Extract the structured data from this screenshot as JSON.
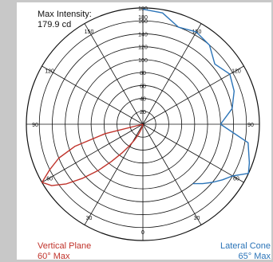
{
  "header": {
    "label": "Max Intensity:",
    "value": "179.9 cd"
  },
  "legend": {
    "left": {
      "line1": "Vertical Plane",
      "line2": "60° Max",
      "color": "#c0332b"
    },
    "right": {
      "line1": "Lateral Cone",
      "line2": "65° Max",
      "color": "#2b74b8"
    }
  },
  "chart_data": {
    "type": "polar-line",
    "radial_range": [
      0,
      180
    ],
    "radial_ticks": [
      20,
      40,
      60,
      80,
      100,
      120,
      140,
      160,
      180
    ],
    "angle_labels": [
      {
        "text": "180",
        "at": 180
      },
      {
        "text": "150",
        "at": 150
      },
      {
        "text": "120",
        "at": 120
      },
      {
        "text": "90",
        "at": 90
      },
      {
        "text": "60",
        "at": 60
      },
      {
        "text": "30",
        "at": 30
      },
      {
        "text": "0",
        "at": 0
      },
      {
        "text": "30",
        "at": -30
      },
      {
        "text": "60",
        "at": -60
      },
      {
        "text": "90",
        "at": -90
      },
      {
        "text": "120",
        "at": -120
      },
      {
        "text": "150",
        "at": -150
      }
    ],
    "grid": true,
    "series": [
      {
        "name": "Vertical Plane",
        "color": "#c0332b",
        "angles": [
          -80,
          -76,
          -72,
          -68,
          -64,
          -60,
          -56,
          -52,
          -48,
          -44,
          -40,
          -36,
          -32,
          -28,
          -24,
          -20,
          -16,
          -12,
          -8,
          -4,
          0
        ],
        "values": [
          0,
          60,
          110,
          140,
          160,
          179.9,
          170,
          150,
          125,
          100,
          75,
          55,
          40,
          28,
          18,
          10,
          5,
          2,
          1,
          0.5,
          0
        ]
      },
      {
        "name": "Lateral Cone",
        "color": "#2b74b8",
        "angles": [
          180,
          170,
          160,
          150,
          140,
          130,
          120,
          110,
          100,
          90,
          80,
          70,
          65,
          60,
          55,
          50,
          45,
          40
        ],
        "values": [
          178,
          175,
          160,
          165,
          160,
          145,
          155,
          150,
          140,
          120,
          165,
          175,
          179.9,
          160,
          150,
          140,
          130,
          120
        ]
      }
    ]
  }
}
